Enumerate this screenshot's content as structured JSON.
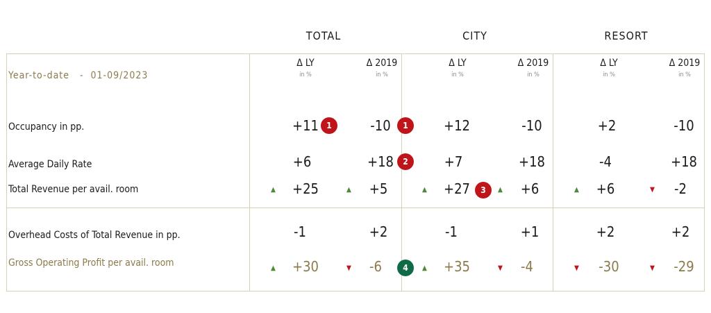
{
  "groups": {
    "total": "TOTAL",
    "city": "CITY",
    "resort": "RESORT"
  },
  "period_label": "Year-to-date   -  01-09/2023",
  "col_ly": "Δ LY",
  "col_2019": "Δ 2019",
  "unit": "in %",
  "rows": {
    "occupancy": {
      "label": "Occupancy in pp.",
      "values": [
        "+11",
        "-10",
        "+12",
        "-10",
        "+2",
        "-10"
      ]
    },
    "adr": {
      "label": "Average Daily Rate",
      "values": [
        "+6",
        "+18",
        "+7",
        "+18",
        "-4",
        "+18"
      ]
    },
    "revpar": {
      "label": "Total Revenue per avail. room",
      "values": [
        "+25",
        "+5",
        "+27",
        "+6",
        "+6",
        "-2"
      ]
    },
    "overhead": {
      "label": "Overhead Costs of Total Revenue in pp.",
      "values": [
        "-1",
        "+2",
        "-1",
        "+1",
        "+2",
        "+2"
      ]
    },
    "gop": {
      "label": "Gross Operating Profit per avail. room",
      "values": [
        "+30",
        "-6",
        "+35",
        "-4",
        "-30",
        "-29"
      ]
    }
  },
  "badges": {
    "b1": "1",
    "b2": "1",
    "b3": "2",
    "b4": "3",
    "b5": "4"
  },
  "colors": {
    "gold": "#8c7a4a",
    "up": "#4b8a3a",
    "down": "#c0141b",
    "badge_red": "#c0141b",
    "badge_green": "#0f6b45"
  }
}
